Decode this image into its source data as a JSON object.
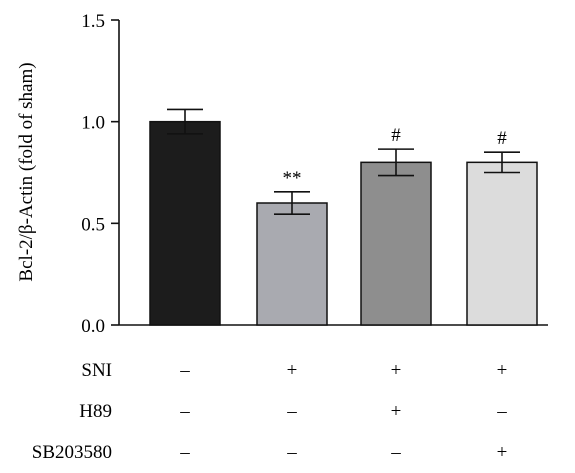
{
  "chart_data": {
    "type": "bar",
    "ylabel": "Bcl-2/β-Actin (fold of sham)",
    "ylim": [
      0,
      1.5
    ],
    "yticks": [
      0.0,
      0.5,
      1.0,
      1.5
    ],
    "ytick_labels": [
      "0.0",
      "0.5",
      "1.0",
      "1.5"
    ],
    "values": [
      1.0,
      0.6,
      0.8,
      0.8
    ],
    "errors": [
      0.06,
      0.055,
      0.065,
      0.05
    ],
    "significance": [
      "",
      "**",
      "#",
      "#"
    ],
    "bar_colors": [
      "#1c1c1c",
      "#a9aab0",
      "#8e8e8e",
      "#dcdcdc"
    ],
    "conditions": [
      {
        "label": "SNI",
        "signs": [
          "–",
          "+",
          "+",
          "+"
        ]
      },
      {
        "label": "H89",
        "signs": [
          "–",
          "–",
          "+",
          "–"
        ]
      },
      {
        "label": "SB203580",
        "signs": [
          "–",
          "–",
          "–",
          "+"
        ]
      }
    ]
  }
}
